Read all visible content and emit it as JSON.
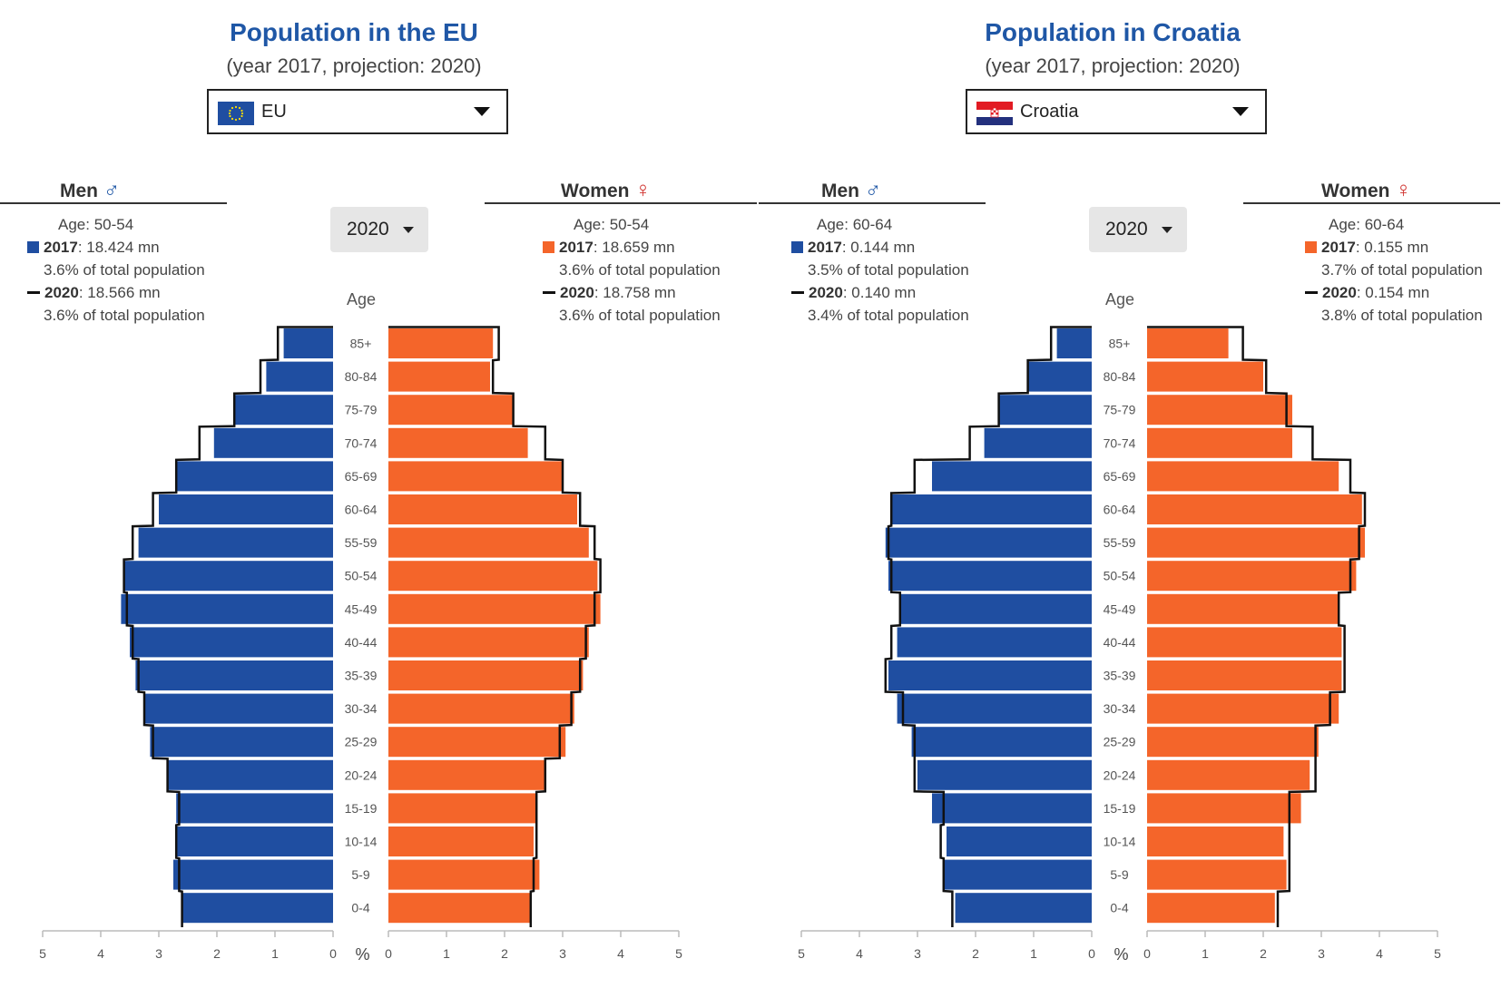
{
  "colors": {
    "men": "#1f4ea1",
    "women": "#f4652a",
    "title": "#1f57a6",
    "outline": "#111111"
  },
  "chart_data": [
    {
      "type": "population-pyramid",
      "title": "Population in the EU",
      "subtitle": "(year 2017, projection: 2020)",
      "selector": {
        "label": "EU",
        "flag": "eu-flag-icon"
      },
      "year_button": "2020",
      "age_axis_label": "Age",
      "unit_label": "%",
      "xlim": [
        0,
        5
      ],
      "x_ticks": [
        "5",
        "4",
        "3",
        "2",
        "1",
        "0",
        "0",
        "1",
        "2",
        "3",
        "4",
        "5"
      ],
      "categories": [
        "0-4",
        "5-9",
        "10-14",
        "15-19",
        "20-24",
        "25-29",
        "30-34",
        "35-39",
        "40-44",
        "45-49",
        "50-54",
        "55-59",
        "60-64",
        "65-69",
        "70-74",
        "75-79",
        "80-84",
        "85+"
      ],
      "men": {
        "header": "Men",
        "symbol": "♂",
        "tooltip": {
          "age": "Age: 50-54",
          "y1_label": "2017",
          "y1_value": ": 18.424 mn",
          "y1_share": "3.6% of total population",
          "y2_label": "2020",
          "y2_value": ": 18.566 mn",
          "y2_share": "3.6% of total population"
        }
      },
      "women": {
        "header": "Women",
        "symbol": "♀",
        "tooltip": {
          "age": "Age: 50-54",
          "y1_label": "2017",
          "y1_value": ": 18.659 mn",
          "y1_share": "3.6% of total population",
          "y2_label": "2020",
          "y2_value": ": 18.758 mn",
          "y2_share": "3.6% of total population"
        }
      },
      "series": [
        {
          "name": "2017 Men",
          "values": [
            2.6,
            2.75,
            2.7,
            2.7,
            2.85,
            3.15,
            3.25,
            3.4,
            3.5,
            3.65,
            3.6,
            3.35,
            3.0,
            2.7,
            2.05,
            1.7,
            1.15,
            0.85
          ]
        },
        {
          "name": "2020 Men",
          "values": [
            2.6,
            2.65,
            2.7,
            2.65,
            2.85,
            3.1,
            3.25,
            3.35,
            3.45,
            3.55,
            3.6,
            3.45,
            3.1,
            2.7,
            2.3,
            1.7,
            1.25,
            0.95
          ]
        },
        {
          "name": "2017 Women",
          "values": [
            2.45,
            2.6,
            2.5,
            2.55,
            2.7,
            3.05,
            3.2,
            3.35,
            3.45,
            3.65,
            3.6,
            3.45,
            3.25,
            3.0,
            2.4,
            2.15,
            1.75,
            1.8
          ]
        },
        {
          "name": "2020 Women",
          "values": [
            2.45,
            2.5,
            2.55,
            2.55,
            2.7,
            2.95,
            3.15,
            3.3,
            3.4,
            3.55,
            3.65,
            3.55,
            3.3,
            3.0,
            2.7,
            2.15,
            1.8,
            1.9
          ]
        }
      ]
    },
    {
      "type": "population-pyramid",
      "title": "Population in Croatia",
      "subtitle": "(year 2017, projection: 2020)",
      "selector": {
        "label": "Croatia",
        "flag": "croatia-flag-icon"
      },
      "year_button": "2020",
      "age_axis_label": "Age",
      "unit_label": "%",
      "xlim": [
        0,
        5
      ],
      "x_ticks": [
        "5",
        "4",
        "3",
        "2",
        "1",
        "0",
        "0",
        "1",
        "2",
        "3",
        "4",
        "5"
      ],
      "categories": [
        "0-4",
        "5-9",
        "10-14",
        "15-19",
        "20-24",
        "25-29",
        "30-34",
        "35-39",
        "40-44",
        "45-49",
        "50-54",
        "55-59",
        "60-64",
        "65-69",
        "70-74",
        "75-79",
        "80-84",
        "85+"
      ],
      "men": {
        "header": "Men",
        "symbol": "♂",
        "tooltip": {
          "age": "Age: 60-64",
          "y1_label": "2017",
          "y1_value": ": 0.144 mn",
          "y1_share": "3.5% of total population",
          "y2_label": "2020",
          "y2_value": ": 0.140 mn",
          "y2_share": "3.4% of total population"
        }
      },
      "women": {
        "header": "Women",
        "symbol": "♀",
        "tooltip": {
          "age": "Age: 60-64",
          "y1_label": "2017",
          "y1_value": ": 0.155 mn",
          "y1_share": "3.7% of total population",
          "y2_label": "2020",
          "y2_value": ": 0.154 mn",
          "y2_share": "3.8% of total population"
        }
      },
      "series": [
        {
          "name": "2017 Men",
          "values": [
            2.35,
            2.55,
            2.5,
            2.75,
            3.0,
            3.1,
            3.35,
            3.5,
            3.35,
            3.3,
            3.5,
            3.55,
            3.45,
            2.75,
            1.85,
            1.6,
            1.1,
            0.6
          ]
        },
        {
          "name": "2020 Men",
          "values": [
            2.4,
            2.55,
            2.6,
            2.55,
            3.05,
            3.05,
            3.25,
            3.55,
            3.45,
            3.3,
            3.45,
            3.5,
            3.45,
            3.05,
            2.1,
            1.6,
            1.1,
            0.7
          ]
        },
        {
          "name": "2017 Women",
          "values": [
            2.2,
            2.4,
            2.35,
            2.65,
            2.8,
            2.95,
            3.3,
            3.35,
            3.35,
            3.3,
            3.6,
            3.75,
            3.7,
            3.3,
            2.5,
            2.5,
            2.0,
            1.4
          ]
        },
        {
          "name": "2020 Women",
          "values": [
            2.25,
            2.45,
            2.45,
            2.45,
            2.9,
            2.9,
            3.15,
            3.4,
            3.4,
            3.3,
            3.5,
            3.65,
            3.75,
            3.5,
            2.85,
            2.4,
            2.05,
            1.65
          ]
        }
      ]
    }
  ]
}
